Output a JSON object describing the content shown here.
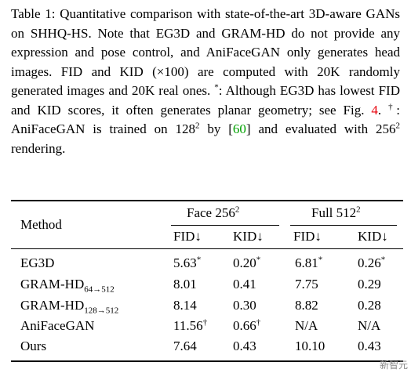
{
  "caption": {
    "part1": "Table 1: Quantitative comparison with state-of-the-art 3D-aware GANs on SHHQ-HS. Note that EG3D and GRAM-HD do not provide any expression and pose control, and AniFaceGAN only generates head images. FID and KID (×100) are computed with 20K randomly generated images and 20K real ones. ",
    "star_mark": "*",
    "part2": ": Although EG3D has lowest FID and KID scores, it often generates planar geometry; see Fig. ",
    "fig_ref": "4",
    "part3": ". ",
    "dagger_mark": "†",
    "part4": ": AniFaceGAN is trained on 128",
    "sup1": "2",
    "part5": " by [",
    "cite": "60",
    "part6": "] and evaluated with 256",
    "sup2": "2",
    "part7": " rendering."
  },
  "table": {
    "method_header": "Method",
    "group1": {
      "label": "Face 256",
      "sup": "2"
    },
    "group2": {
      "label": "Full 512",
      "sup": "2"
    },
    "subheaders": [
      "FID↓",
      "KID↓",
      "FID↓",
      "KID↓"
    ],
    "rows": [
      {
        "method": "EG3D",
        "sub": "",
        "cells": [
          {
            "v": "5.63",
            "m": "*"
          },
          {
            "v": "0.20",
            "m": "*"
          },
          {
            "v": "6.81",
            "m": "*"
          },
          {
            "v": "0.26",
            "m": "*"
          }
        ]
      },
      {
        "method": "GRAM-HD",
        "sub": "64→512",
        "cells": [
          {
            "v": "8.01",
            "m": ""
          },
          {
            "v": "0.41",
            "m": ""
          },
          {
            "v": "7.75",
            "m": ""
          },
          {
            "v": "0.29",
            "m": ""
          }
        ]
      },
      {
        "method": "GRAM-HD",
        "sub": "128→512",
        "cells": [
          {
            "v": "8.14",
            "m": ""
          },
          {
            "v": "0.30",
            "m": ""
          },
          {
            "v": "8.82",
            "m": ""
          },
          {
            "v": "0.28",
            "m": ""
          }
        ]
      },
      {
        "method": "AniFaceGAN",
        "sub": "",
        "cells": [
          {
            "v": "11.56",
            "m": "†"
          },
          {
            "v": "0.66",
            "m": "†"
          },
          {
            "v": "N/A",
            "m": ""
          },
          {
            "v": "N/A",
            "m": ""
          }
        ]
      },
      {
        "method": "Ours",
        "sub": "",
        "cells": [
          {
            "v": "7.64",
            "m": ""
          },
          {
            "v": "0.43",
            "m": ""
          },
          {
            "v": "10.10",
            "m": ""
          },
          {
            "v": "0.43",
            "m": ""
          }
        ]
      }
    ]
  },
  "watermark": "新智元"
}
